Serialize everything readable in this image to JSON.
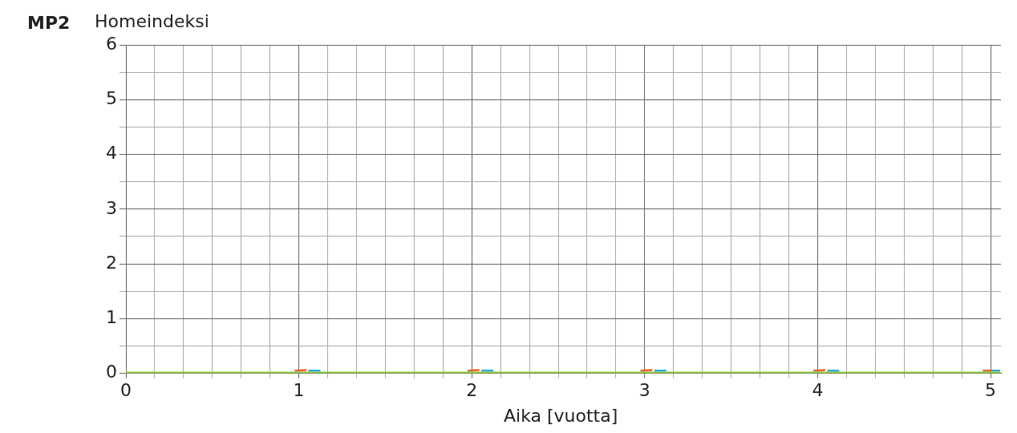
{
  "chart_data": {
    "type": "line",
    "title": "MP2",
    "ylabel": "Homeindeksi",
    "xlabel": "Aika [vuotta]",
    "series": [
      {
        "color": "#29a9d9",
        "x": [
          1.06,
          1.12,
          null,
          2.06,
          2.12,
          null,
          3.06,
          3.12,
          null,
          4.06,
          4.12,
          null,
          5.0,
          5.05
        ],
        "values": [
          0.05,
          0.05,
          null,
          0.05,
          0.05,
          null,
          0.05,
          0.05,
          null,
          0.05,
          0.05,
          null,
          0.05,
          0.05
        ]
      },
      {
        "color": "#e8632b",
        "x": [
          0.98,
          1.04,
          null,
          1.98,
          2.04,
          null,
          2.98,
          3.04,
          null,
          3.98,
          4.04,
          null,
          4.96,
          5.0
        ],
        "values": [
          0.05,
          0.06,
          null,
          0.05,
          0.06,
          null,
          0.05,
          0.06,
          null,
          0.05,
          0.06,
          null,
          0.05,
          0.05
        ]
      },
      {
        "color": "#8dc63f",
        "x": [
          0,
          5.05
        ],
        "values": [
          0,
          0
        ]
      }
    ],
    "xlim": [
      0,
      5.06
    ],
    "xticks": [
      0,
      {
        "value": 0.1667,
        "label": null
      },
      {
        "value": 0.3333,
        "label": null
      },
      {
        "value": 0.5,
        "label": null
      },
      {
        "value": 0.6667,
        "label": null
      },
      {
        "value": 0.8333,
        "label": null
      },
      1,
      {
        "value": 1.1667,
        "label": null
      },
      {
        "value": 1.3333,
        "label": null
      },
      {
        "value": 1.5,
        "label": null
      },
      {
        "value": 1.6667,
        "label": null
      },
      {
        "value": 1.8333,
        "label": null
      },
      2,
      {
        "value": 2.1667,
        "label": null
      },
      {
        "value": 2.3333,
        "label": null
      },
      {
        "value": 2.5,
        "label": null
      },
      {
        "value": 2.6667,
        "label": null
      },
      {
        "value": 2.8333,
        "label": null
      },
      3,
      {
        "value": 3.1667,
        "label": null
      },
      {
        "value": 3.3333,
        "label": null
      },
      {
        "value": 3.5,
        "label": null
      },
      {
        "value": 3.6667,
        "label": null
      },
      {
        "value": 3.8333,
        "label": null
      },
      4,
      {
        "value": 4.1667,
        "label": null
      },
      {
        "value": 4.3333,
        "label": null
      },
      {
        "value": 4.5,
        "label": null
      },
      {
        "value": 4.6667,
        "label": null
      },
      {
        "value": 4.8333,
        "label": null
      },
      5
    ],
    "ylim": [
      0,
      6
    ],
    "yticks": [
      0,
      {
        "value": 0.5,
        "label": null
      },
      1,
      {
        "value": 1.5,
        "label": null
      },
      2,
      {
        "value": 2.5,
        "label": null
      },
      3,
      {
        "value": 3.5,
        "label": null
      },
      4,
      {
        "value": 4.5,
        "label": null
      },
      5,
      {
        "value": 5.5,
        "label": null
      },
      6
    ],
    "grid": true,
    "legend": false,
    "marker": "none",
    "line_style": "solid"
  }
}
